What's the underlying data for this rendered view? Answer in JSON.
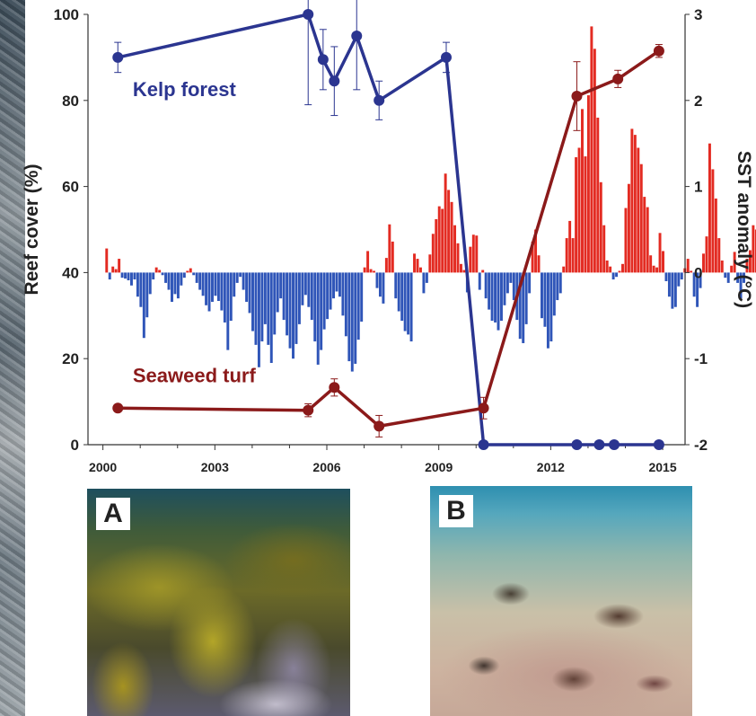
{
  "panels": {
    "a_label": "A",
    "b_label": "B"
  },
  "chart_data": {
    "type": "line",
    "title": "",
    "xlabel": "",
    "ylabel": "Reef cover (%)",
    "y2label": "SST anomaly (°C)",
    "xlim": [
      1999.6,
      2015.6
    ],
    "ylim": [
      0,
      100
    ],
    "y2lim": [
      -2,
      3
    ],
    "xticks": [
      2000,
      2003,
      2006,
      2009,
      2012,
      2015
    ],
    "yticks": [
      0,
      20,
      40,
      60,
      80,
      100
    ],
    "y2ticks": [
      -2,
      -1,
      0,
      1,
      2,
      3
    ],
    "series": [
      {
        "name": "Kelp forest",
        "axis": "left",
        "color": "#2b3590",
        "label_pos": [
          2000.8,
          81
        ],
        "x": [
          2000.4,
          2005.5,
          2005.9,
          2006.2,
          2006.8,
          2007.4,
          2009.2,
          2010.2,
          2012.7,
          2013.3,
          2013.7,
          2014.9
        ],
        "y": [
          90,
          100,
          89.5,
          84.5,
          95,
          80,
          90,
          0,
          0,
          0,
          0,
          0
        ],
        "err": [
          3.5,
          21,
          7,
          8,
          12.5,
          4.5,
          3.5,
          0,
          0,
          0,
          0,
          0
        ]
      },
      {
        "name": "Seaweed turf",
        "axis": "left",
        "color": "#8b1a1a",
        "label_pos": [
          2000.8,
          14.5
        ],
        "x": [
          2000.4,
          2005.5,
          2006.2,
          2007.4,
          2010.2,
          2012.7,
          2013.8,
          2014.9
        ],
        "y": [
          8.5,
          8,
          13.3,
          4.3,
          8.5,
          81,
          85,
          91.5
        ],
        "err": [
          0,
          1.5,
          2,
          2.5,
          2.5,
          8,
          2,
          1.5
        ]
      }
    ],
    "bars": {
      "name": "SST anomaly",
      "axis": "right",
      "pos_color": "#e32b22",
      "neg_color": "#2f55b8",
      "x_start": 2000.1,
      "x_step": 0.0833,
      "values": [
        0.28,
        -0.08,
        0.07,
        0.04,
        0.16,
        -0.06,
        -0.07,
        -0.09,
        -0.15,
        -0.08,
        -0.28,
        -0.4,
        -0.76,
        -0.52,
        -0.25,
        -0.08,
        0.06,
        0.03,
        -0.03,
        -0.12,
        -0.2,
        -0.34,
        -0.25,
        -0.3,
        -0.15,
        -0.06,
        0.02,
        0.05,
        -0.03,
        -0.12,
        -0.2,
        -0.27,
        -0.38,
        -0.45,
        -0.34,
        -0.27,
        -0.33,
        -0.44,
        -0.58,
        -0.9,
        -0.56,
        -0.28,
        -0.12,
        -0.05,
        -0.2,
        -0.34,
        -0.47,
        -0.68,
        -0.84,
        -1.1,
        -0.8,
        -0.6,
        -0.84,
        -1.05,
        -0.72,
        -0.46,
        -0.3,
        -0.55,
        -0.73,
        -0.88,
        -1.0,
        -0.83,
        -0.6,
        -0.38,
        -0.26,
        -0.4,
        -0.55,
        -0.8,
        -1.07,
        -0.9,
        -0.66,
        -0.54,
        -0.43,
        -0.3,
        -0.22,
        -0.28,
        -0.5,
        -0.74,
        -1.03,
        -1.15,
        -1.06,
        -0.78,
        -0.57,
        0.06,
        0.25,
        0.04,
        0.02,
        -0.18,
        -0.28,
        -0.36,
        0.17,
        0.56,
        0.36,
        -0.3,
        -0.45,
        -0.56,
        -0.68,
        -0.72,
        -0.8,
        0.22,
        0.16,
        0.06,
        -0.24,
        -0.12,
        0.21,
        0.45,
        0.62,
        0.77,
        0.74,
        1.15,
        0.96,
        0.82,
        0.55,
        0.34,
        0.1,
        0.03,
        -0.23,
        0.3,
        0.44,
        0.43,
        -0.2,
        0.03,
        -0.3,
        -0.43,
        -0.56,
        -0.58,
        -0.67,
        -0.56,
        -0.38,
        -0.24,
        -0.12,
        -0.32,
        -0.55,
        -0.77,
        -0.82,
        -0.6,
        -0.24,
        0.36,
        0.5,
        0.2,
        -0.53,
        -0.63,
        -0.88,
        -0.8,
        -0.5,
        -0.32,
        -0.24,
        0.07,
        0.4,
        0.6,
        0.4,
        1.34,
        1.45,
        1.9,
        1.35,
        2.06,
        2.86,
        2.6,
        1.8,
        1.05,
        0.55,
        0.14,
        0.07,
        -0.08,
        -0.05,
        0.02,
        0.1,
        0.75,
        1.03,
        1.67,
        1.6,
        1.45,
        1.26,
        0.88,
        0.76,
        0.2,
        0.08,
        0.06,
        0.46,
        0.25,
        -0.1,
        -0.28,
        -0.42,
        -0.4,
        -0.16,
        -0.08,
        0.05,
        0.16,
        0.02,
        -0.28,
        -0.4,
        -0.18,
        0.22,
        0.42,
        1.5,
        1.2,
        0.86,
        0.4,
        0.14,
        -0.06,
        -0.12,
        0.08,
        0.24,
        -0.12,
        -0.3,
        -0.12,
        0.16,
        0.26,
        0.55,
        0.5,
        0.46,
        0.36,
        0.24,
        0.14,
        -0.06,
        -0.14,
        -0.25,
        -0.34,
        -0.7,
        -1.0,
        -0.5,
        -0.2,
        0.07,
        0.18,
        0.36,
        0.98,
        0.74,
        0.34,
        0.14,
        0.08,
        0.05,
        0.02,
        -0.06,
        -0.25,
        -0.42,
        0.1,
        0.22,
        0.5,
        0.34,
        0.28,
        0.12,
        0.03,
        -0.06,
        -0.2,
        -0.4,
        -0.3,
        -0.15,
        0.07,
        0.15,
        0.4,
        0.8
      ]
    }
  }
}
